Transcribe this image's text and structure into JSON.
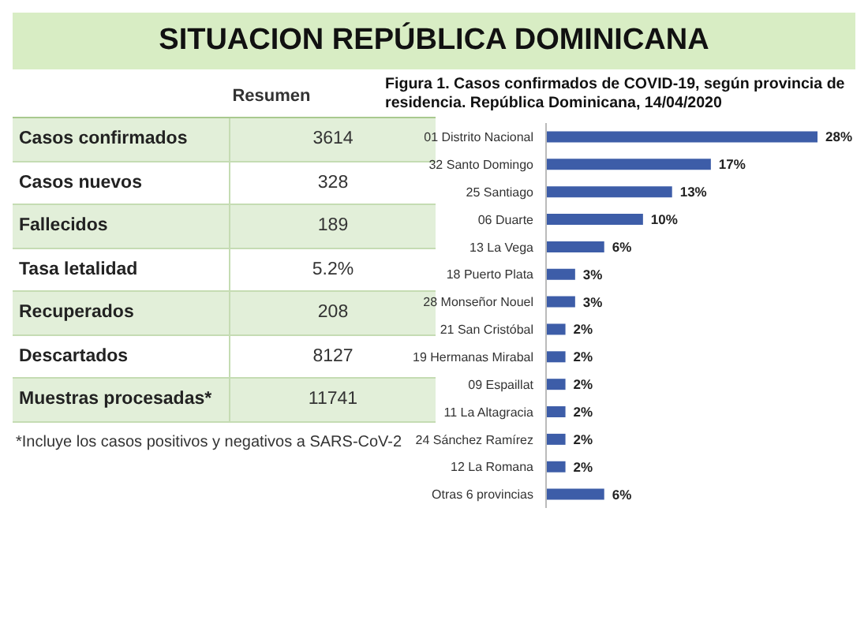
{
  "chart_data": [
    {
      "type": "other",
      "title": "SITUACION REPÚBLICA DOMINICANA",
      "subtitle": "Resumen",
      "categories": [
        "Casos confirmados",
        "Casos nuevos",
        "Fallecidos",
        "Tasa letalidad",
        "Recuperados",
        "Descartados",
        "Muestras procesadas*"
      ],
      "value_labels": [
        "3614",
        "328",
        "189",
        "5.2%",
        "208",
        "8127",
        "11741"
      ],
      "annotations": [
        "*Incluye los casos positivos y negativos a SARS-CoV-2"
      ]
    },
    {
      "type": "bar",
      "orientation": "horizontal",
      "title": "Figura 1. Casos confirmados de COVID-19, según provincia de residencia. República Dominicana, 14/04/2020",
      "categories": [
        "01 Distrito Nacional",
        "32 Santo Domingo",
        "25 Santiago",
        "06 Duarte",
        "13 La Vega",
        "18 Puerto Plata",
        "28 Monseñor Nouel",
        "21 San Cristóbal",
        "19 Hermanas Mirabal",
        "09 Espaillat",
        "11 La Altagracia",
        "24 Sánchez Ramírez",
        "12 La Romana",
        "Otras 6 provincias"
      ],
      "values": [
        28,
        17,
        13,
        10,
        6,
        3,
        3,
        2,
        2,
        2,
        2,
        2,
        2,
        6
      ],
      "value_labels": [
        "28%",
        "17%",
        "13%",
        "10%",
        "6%",
        "3%",
        "3%",
        "2%",
        "2%",
        "2%",
        "2%",
        "2%",
        "2%",
        "6%"
      ],
      "color": "#3d5da8"
    }
  ]
}
